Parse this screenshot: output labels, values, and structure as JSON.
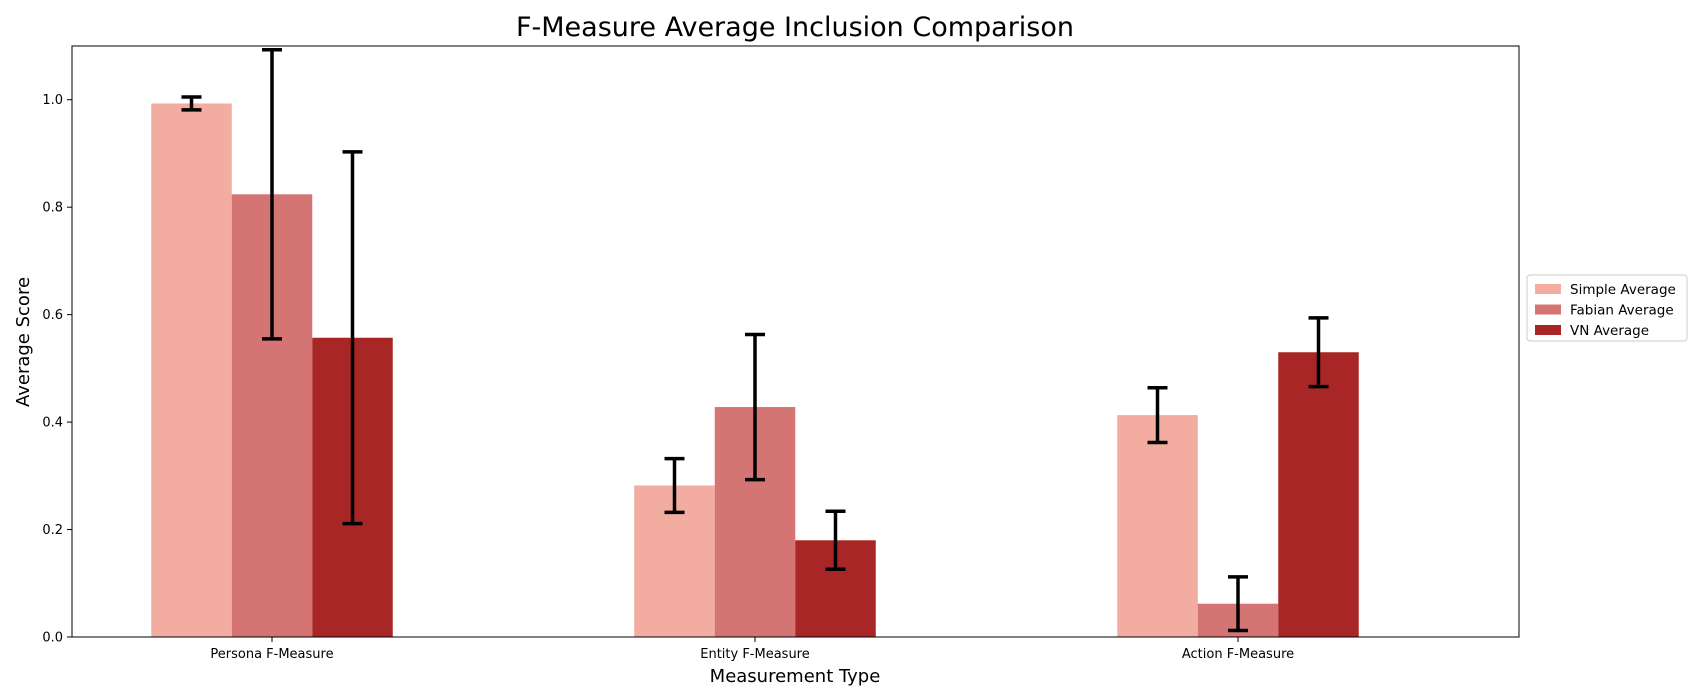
{
  "chart_data": {
    "type": "bar",
    "title": "F-Measure Average  Inclusion Comparison",
    "xlabel": "Measurement Type",
    "ylabel": "Average Score",
    "categories": [
      "Persona F-Measure",
      "Entity F-Measure",
      "Action F-Measure"
    ],
    "ylim": [
      0,
      1.1
    ],
    "yticks": [
      "0.0",
      "0.2",
      "0.4",
      "0.6",
      "0.8",
      "1.0"
    ],
    "grid": false,
    "legend_position": "right, outside plot",
    "series": [
      {
        "name": "Simple Average",
        "color": "#f2aca0",
        "values": [
          0.993,
          0.282,
          0.413
        ],
        "errors": [
          0.012,
          0.05,
          0.051
        ]
      },
      {
        "name": "Fabian Average",
        "color": "#d47473",
        "values": [
          0.824,
          0.428,
          0.062
        ],
        "errors": [
          0.269,
          0.135,
          0.05
        ]
      },
      {
        "name": "VN Average",
        "color": "#a82626",
        "values": [
          0.557,
          0.18,
          0.53
        ],
        "errors": [
          0.346,
          0.054,
          0.064
        ]
      }
    ],
    "error_bar_color": "#000000"
  }
}
